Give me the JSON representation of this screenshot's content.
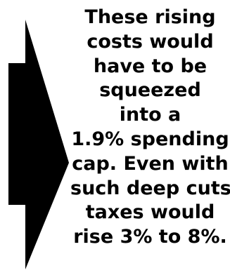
{
  "callout": {
    "lines": [
      "These rising",
      "costs would",
      "have to be",
      "squeezed",
      "into a",
      "1.9% spending",
      "cap. Even with",
      "such deep cuts,",
      "taxes would",
      "rise 3% to 8%."
    ]
  },
  "colors": {
    "arrow": "#000000",
    "text": "#000000",
    "background": "#ffffff"
  },
  "icons": {
    "arrow": "right-arrow-icon"
  }
}
